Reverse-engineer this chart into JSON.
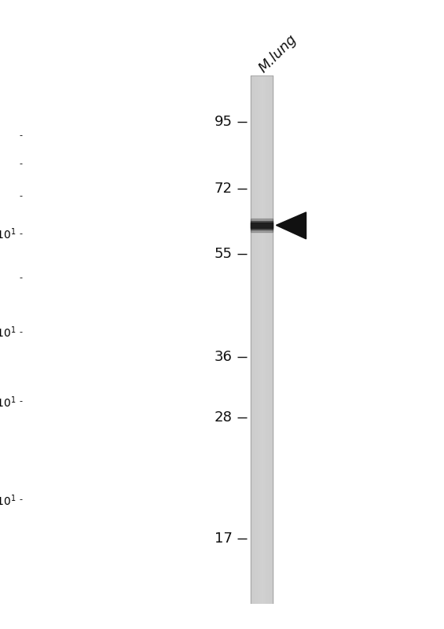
{
  "background_color": "#ffffff",
  "lane_label": "M.lung",
  "mw_markers": [
    95,
    72,
    55,
    36,
    28,
    17
  ],
  "band_mw": 62,
  "font_size_markers": 13,
  "font_size_label": 13,
  "fig_width": 5.65,
  "fig_height": 8.0,
  "lane_color": "#d0d0d0",
  "band_color": "#1a1a1a",
  "arrow_color": "#111111",
  "tick_color": "#111111",
  "label_color": "#111111",
  "border_color": "#999999"
}
